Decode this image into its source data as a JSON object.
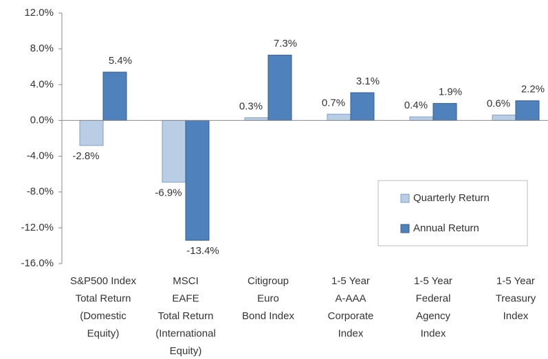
{
  "chart_data": {
    "type": "bar",
    "categories": [
      [
        "S&P500 Index",
        "Total Return",
        "(Domestic",
        "Equity)"
      ],
      [
        "MSCI",
        "EAFE",
        "Total Return",
        "(International",
        "Equity)"
      ],
      [
        "Citigroup",
        "Euro",
        "Bond Index"
      ],
      [
        "1-5 Year",
        "A-AAA",
        "Corporate",
        "Index"
      ],
      [
        "1-5 Year",
        "Federal",
        "Agency",
        "Index"
      ],
      [
        "1-5 Year",
        "Treasury",
        "Index"
      ]
    ],
    "series": [
      {
        "name": "Quarterly Return",
        "color": "#b9cde5",
        "values": [
          -2.8,
          -6.9,
          0.3,
          0.7,
          0.4,
          0.6
        ],
        "value_labels": [
          "-2.8%",
          "-6.9%",
          "0.3%",
          "0.7%",
          "0.4%",
          "0.6%"
        ]
      },
      {
        "name": "Annual Return",
        "color": "#4f81bd",
        "values": [
          5.4,
          -13.4,
          7.3,
          3.1,
          1.9,
          2.2
        ],
        "value_labels": [
          "5.4%",
          "-13.4%",
          "7.3%",
          "3.1%",
          "1.9%",
          "2.2%"
        ]
      }
    ],
    "ylim": [
      -16,
      12
    ],
    "yticks": [
      {
        "value": 12,
        "label": "12.0%"
      },
      {
        "value": 8,
        "label": "8.0%"
      },
      {
        "value": 4,
        "label": "4.0%"
      },
      {
        "value": 0,
        "label": "0.0%"
      },
      {
        "value": -4,
        "label": "-4.0%"
      },
      {
        "value": -8,
        "label": "-8.0%"
      },
      {
        "value": -12,
        "label": "-12.0%"
      },
      {
        "value": -16,
        "label": "-16.0%"
      }
    ],
    "grid": false,
    "legend": "lower right"
  }
}
